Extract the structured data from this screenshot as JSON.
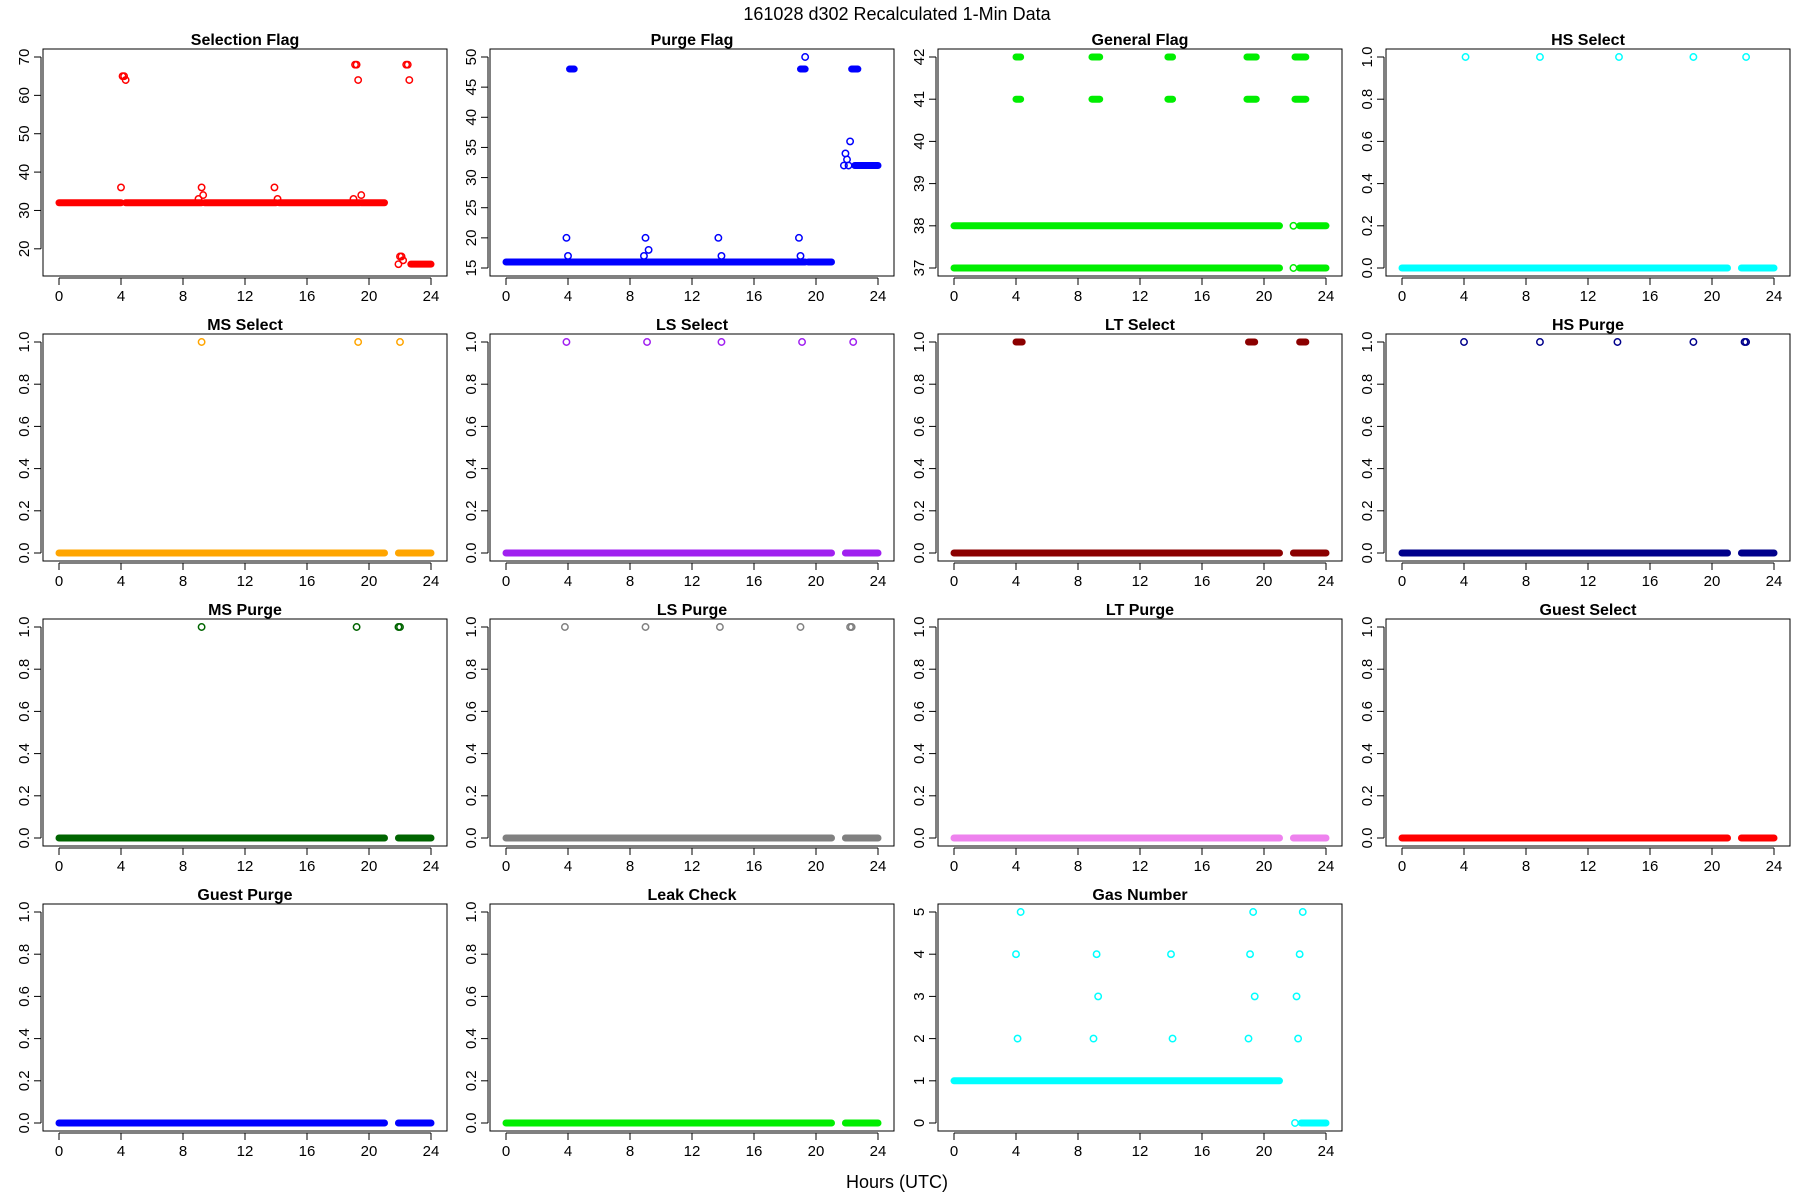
{
  "figure": {
    "title": "161028    d302    Recalculated 1-Min Data",
    "xlabel": "Hours (UTC)"
  },
  "chart_data": [
    {
      "type": "scatter",
      "title": "Selection Flag",
      "color": "#ff0000",
      "xlim": [
        0,
        24
      ],
      "ylim": [
        15,
        70
      ],
      "yticks": [
        20,
        30,
        40,
        50,
        60,
        70
      ],
      "xticks": [
        0,
        4,
        8,
        12,
        16,
        20,
        24
      ],
      "segments": [
        {
          "x": [
            0,
            4.0
          ],
          "y": 32
        },
        {
          "x": [
            4.3,
            9.2
          ],
          "y": 32
        },
        {
          "x": [
            9.4,
            14.0
          ],
          "y": 32
        },
        {
          "x": [
            14.2,
            19.4
          ],
          "y": 32
        },
        {
          "x": [
            19.5,
            21.0
          ],
          "y": 32
        },
        {
          "x": [
            22.7,
            24.0
          ],
          "y": 16
        }
      ],
      "points": [
        [
          4.0,
          36
        ],
        [
          4.1,
          65
        ],
        [
          4.2,
          65
        ],
        [
          4.3,
          64
        ],
        [
          9.0,
          33
        ],
        [
          9.2,
          36
        ],
        [
          9.3,
          34
        ],
        [
          13.9,
          36
        ],
        [
          14.1,
          33
        ],
        [
          19.0,
          33
        ],
        [
          19.1,
          68
        ],
        [
          19.2,
          68
        ],
        [
          19.3,
          64
        ],
        [
          19.5,
          34
        ],
        [
          21.9,
          16
        ],
        [
          22.0,
          18
        ],
        [
          22.1,
          18
        ],
        [
          22.2,
          17
        ],
        [
          22.4,
          68
        ],
        [
          22.5,
          68
        ],
        [
          22.6,
          64
        ]
      ]
    },
    {
      "type": "scatter",
      "title": "Purge Flag",
      "color": "#0000ff",
      "xlim": [
        0,
        24
      ],
      "ylim": [
        15,
        50
      ],
      "yticks": [
        15,
        20,
        25,
        30,
        35,
        40,
        45,
        50
      ],
      "xticks": [
        0,
        4,
        8,
        12,
        16,
        20,
        24
      ],
      "segments": [
        {
          "x": [
            0,
            19.3
          ],
          "y": 16
        },
        {
          "x": [
            19.5,
            21.0
          ],
          "y": 16
        },
        {
          "x": [
            22.5,
            24.0
          ],
          "y": 32
        },
        {
          "x": [
            4.1,
            4.4
          ],
          "y": 48
        },
        {
          "x": [
            19.0,
            19.3
          ],
          "y": 48
        },
        {
          "x": [
            22.3,
            22.7
          ],
          "y": 48
        }
      ],
      "points": [
        [
          3.9,
          20
        ],
        [
          4.0,
          17
        ],
        [
          8.9,
          17
        ],
        [
          9.0,
          20
        ],
        [
          9.2,
          18
        ],
        [
          13.7,
          20
        ],
        [
          13.9,
          17
        ],
        [
          18.9,
          20
        ],
        [
          19.0,
          17
        ],
        [
          19.3,
          50
        ],
        [
          21.9,
          34
        ],
        [
          22.0,
          33
        ],
        [
          22.1,
          32
        ],
        [
          22.2,
          36
        ],
        [
          21.8,
          32
        ]
      ]
    },
    {
      "type": "scatter",
      "title": "General Flag",
      "color": "#00ee00",
      "xlim": [
        0,
        24
      ],
      "ylim": [
        37,
        42
      ],
      "yticks": [
        37,
        38,
        39,
        40,
        41,
        42
      ],
      "xticks": [
        0,
        4,
        8,
        12,
        16,
        20,
        24
      ],
      "segments": [
        {
          "x": [
            0,
            21.0
          ],
          "y": 38
        },
        {
          "x": [
            0,
            21.0
          ],
          "y": 37
        },
        {
          "x": [
            22.3,
            24.0
          ],
          "y": 38
        },
        {
          "x": [
            22.3,
            24.0
          ],
          "y": 37
        },
        {
          "x": [
            4.0,
            4.3
          ],
          "y": 42
        },
        {
          "x": [
            4.0,
            4.3
          ],
          "y": 41
        },
        {
          "x": [
            8.9,
            9.4
          ],
          "y": 42
        },
        {
          "x": [
            8.9,
            9.4
          ],
          "y": 41
        },
        {
          "x": [
            13.8,
            14.1
          ],
          "y": 42
        },
        {
          "x": [
            13.8,
            14.1
          ],
          "y": 41
        },
        {
          "x": [
            18.9,
            19.5
          ],
          "y": 42
        },
        {
          "x": [
            18.9,
            19.5
          ],
          "y": 41
        },
        {
          "x": [
            22.0,
            22.7
          ],
          "y": 42
        },
        {
          "x": [
            22.0,
            22.7
          ],
          "y": 41
        }
      ],
      "points": [
        [
          21.9,
          38
        ],
        [
          21.9,
          37
        ]
      ]
    },
    {
      "type": "scatter",
      "title": "HS Select",
      "color": "#00ffff",
      "xlim": [
        0,
        24
      ],
      "ylim": [
        0,
        1
      ],
      "yticks": [
        0.0,
        0.2,
        0.4,
        0.6,
        0.8,
        1.0
      ],
      "xticks": [
        0,
        4,
        8,
        12,
        16,
        20,
        24
      ],
      "segments": [
        {
          "x": [
            0,
            21.0
          ],
          "y": 0
        },
        {
          "x": [
            21.9,
            24.0
          ],
          "y": 0
        }
      ],
      "points": [
        [
          4.1,
          1
        ],
        [
          8.9,
          1
        ],
        [
          14.0,
          1
        ],
        [
          18.8,
          1
        ],
        [
          22.2,
          1
        ]
      ]
    },
    {
      "type": "scatter",
      "title": "MS Select",
      "color": "#ffa500",
      "xlim": [
        0,
        24
      ],
      "ylim": [
        0,
        1
      ],
      "yticks": [
        0.0,
        0.2,
        0.4,
        0.6,
        0.8,
        1.0
      ],
      "xticks": [
        0,
        4,
        8,
        12,
        16,
        20,
        24
      ],
      "segments": [
        {
          "x": [
            0,
            21.0
          ],
          "y": 0
        },
        {
          "x": [
            21.9,
            24.0
          ],
          "y": 0
        }
      ],
      "points": [
        [
          9.2,
          1
        ],
        [
          19.3,
          1
        ],
        [
          22.0,
          1
        ]
      ]
    },
    {
      "type": "scatter",
      "title": "LS Select",
      "color": "#a020f0",
      "xlim": [
        0,
        24
      ],
      "ylim": [
        0,
        1
      ],
      "yticks": [
        0.0,
        0.2,
        0.4,
        0.6,
        0.8,
        1.0
      ],
      "xticks": [
        0,
        4,
        8,
        12,
        16,
        20,
        24
      ],
      "segments": [
        {
          "x": [
            0,
            21.0
          ],
          "y": 0
        },
        {
          "x": [
            21.9,
            24.0
          ],
          "y": 0
        }
      ],
      "points": [
        [
          3.9,
          1
        ],
        [
          9.1,
          1
        ],
        [
          13.9,
          1
        ],
        [
          19.1,
          1
        ],
        [
          22.4,
          1
        ]
      ]
    },
    {
      "type": "scatter",
      "title": "LT Select",
      "color": "#8b0000",
      "xlim": [
        0,
        24
      ],
      "ylim": [
        0,
        1
      ],
      "yticks": [
        0.0,
        0.2,
        0.4,
        0.6,
        0.8,
        1.0
      ],
      "xticks": [
        0,
        4,
        8,
        12,
        16,
        20,
        24
      ],
      "segments": [
        {
          "x": [
            0,
            21.0
          ],
          "y": 0
        },
        {
          "x": [
            21.9,
            24.0
          ],
          "y": 0
        },
        {
          "x": [
            4.0,
            4.4
          ],
          "y": 1
        },
        {
          "x": [
            19.0,
            19.4
          ],
          "y": 1
        },
        {
          "x": [
            22.3,
            22.7
          ],
          "y": 1
        }
      ],
      "points": []
    },
    {
      "type": "scatter",
      "title": "HS Purge",
      "color": "#00008b",
      "xlim": [
        0,
        24
      ],
      "ylim": [
        0,
        1
      ],
      "yticks": [
        0.0,
        0.2,
        0.4,
        0.6,
        0.8,
        1.0
      ],
      "xticks": [
        0,
        4,
        8,
        12,
        16,
        20,
        24
      ],
      "segments": [
        {
          "x": [
            0,
            21.0
          ],
          "y": 0
        },
        {
          "x": [
            21.9,
            24.0
          ],
          "y": 0
        }
      ],
      "points": [
        [
          4.0,
          1
        ],
        [
          8.9,
          1
        ],
        [
          13.9,
          1
        ],
        [
          18.8,
          1
        ],
        [
          22.1,
          1
        ],
        [
          22.2,
          1
        ]
      ]
    },
    {
      "type": "scatter",
      "title": "MS Purge",
      "color": "#006400",
      "xlim": [
        0,
        24
      ],
      "ylim": [
        0,
        1
      ],
      "yticks": [
        0.0,
        0.2,
        0.4,
        0.6,
        0.8,
        1.0
      ],
      "xticks": [
        0,
        4,
        8,
        12,
        16,
        20,
        24
      ],
      "segments": [
        {
          "x": [
            0,
            21.0
          ],
          "y": 0
        },
        {
          "x": [
            21.9,
            24.0
          ],
          "y": 0
        }
      ],
      "points": [
        [
          9.2,
          1
        ],
        [
          19.2,
          1
        ],
        [
          21.9,
          1
        ],
        [
          22.0,
          1
        ]
      ]
    },
    {
      "type": "scatter",
      "title": "LS Purge",
      "color": "#808080",
      "xlim": [
        0,
        24
      ],
      "ylim": [
        0,
        1
      ],
      "yticks": [
        0.0,
        0.2,
        0.4,
        0.6,
        0.8,
        1.0
      ],
      "xticks": [
        0,
        4,
        8,
        12,
        16,
        20,
        24
      ],
      "segments": [
        {
          "x": [
            0,
            21.0
          ],
          "y": 0
        },
        {
          "x": [
            21.9,
            24.0
          ],
          "y": 0
        }
      ],
      "points": [
        [
          3.8,
          1
        ],
        [
          9.0,
          1
        ],
        [
          13.8,
          1
        ],
        [
          19.0,
          1
        ],
        [
          22.2,
          1
        ],
        [
          22.3,
          1
        ]
      ]
    },
    {
      "type": "scatter",
      "title": "LT Purge",
      "color": "#ee82ee",
      "xlim": [
        0,
        24
      ],
      "ylim": [
        0,
        1
      ],
      "yticks": [
        0.0,
        0.2,
        0.4,
        0.6,
        0.8,
        1.0
      ],
      "xticks": [
        0,
        4,
        8,
        12,
        16,
        20,
        24
      ],
      "segments": [
        {
          "x": [
            0,
            21.0
          ],
          "y": 0
        },
        {
          "x": [
            21.9,
            24.0
          ],
          "y": 0
        }
      ],
      "points": []
    },
    {
      "type": "scatter",
      "title": "Guest Select",
      "color": "#ff0000",
      "xlim": [
        0,
        24
      ],
      "ylim": [
        0,
        1
      ],
      "yticks": [
        0.0,
        0.2,
        0.4,
        0.6,
        0.8,
        1.0
      ],
      "xticks": [
        0,
        4,
        8,
        12,
        16,
        20,
        24
      ],
      "segments": [
        {
          "x": [
            0,
            21.0
          ],
          "y": 0
        },
        {
          "x": [
            21.9,
            24.0
          ],
          "y": 0
        }
      ],
      "points": []
    },
    {
      "type": "scatter",
      "title": "Guest Purge",
      "color": "#0000ff",
      "xlim": [
        0,
        24
      ],
      "ylim": [
        0,
        1
      ],
      "yticks": [
        0.0,
        0.2,
        0.4,
        0.6,
        0.8,
        1.0
      ],
      "xticks": [
        0,
        4,
        8,
        12,
        16,
        20,
        24
      ],
      "segments": [
        {
          "x": [
            0,
            21.0
          ],
          "y": 0
        },
        {
          "x": [
            21.9,
            24.0
          ],
          "y": 0
        }
      ],
      "points": []
    },
    {
      "type": "scatter",
      "title": "Leak Check",
      "color": "#00ee00",
      "xlim": [
        0,
        24
      ],
      "ylim": [
        0,
        1
      ],
      "yticks": [
        0.0,
        0.2,
        0.4,
        0.6,
        0.8,
        1.0
      ],
      "xticks": [
        0,
        4,
        8,
        12,
        16,
        20,
        24
      ],
      "segments": [
        {
          "x": [
            0,
            21.0
          ],
          "y": 0
        },
        {
          "x": [
            21.9,
            24.0
          ],
          "y": 0
        }
      ],
      "points": []
    },
    {
      "type": "scatter",
      "title": "Gas Number",
      "color": "#00ffff",
      "xlim": [
        0,
        24
      ],
      "ylim": [
        0,
        5
      ],
      "yticks": [
        0,
        1,
        2,
        3,
        4,
        5
      ],
      "xticks": [
        0,
        4,
        8,
        12,
        16,
        20,
        24
      ],
      "segments": [
        {
          "x": [
            0,
            21.0
          ],
          "y": 1
        },
        {
          "x": [
            22.4,
            24.0
          ],
          "y": 0
        }
      ],
      "points": [
        [
          4.0,
          4
        ],
        [
          4.1,
          2
        ],
        [
          4.3,
          5
        ],
        [
          9.0,
          2
        ],
        [
          9.2,
          4
        ],
        [
          9.3,
          3
        ],
        [
          14.0,
          4
        ],
        [
          14.1,
          2
        ],
        [
          19.0,
          2
        ],
        [
          19.1,
          4
        ],
        [
          19.3,
          5
        ],
        [
          19.4,
          3
        ],
        [
          22.0,
          0
        ],
        [
          22.1,
          3
        ],
        [
          22.2,
          2
        ],
        [
          22.3,
          4
        ],
        [
          22.5,
          5
        ]
      ]
    }
  ]
}
